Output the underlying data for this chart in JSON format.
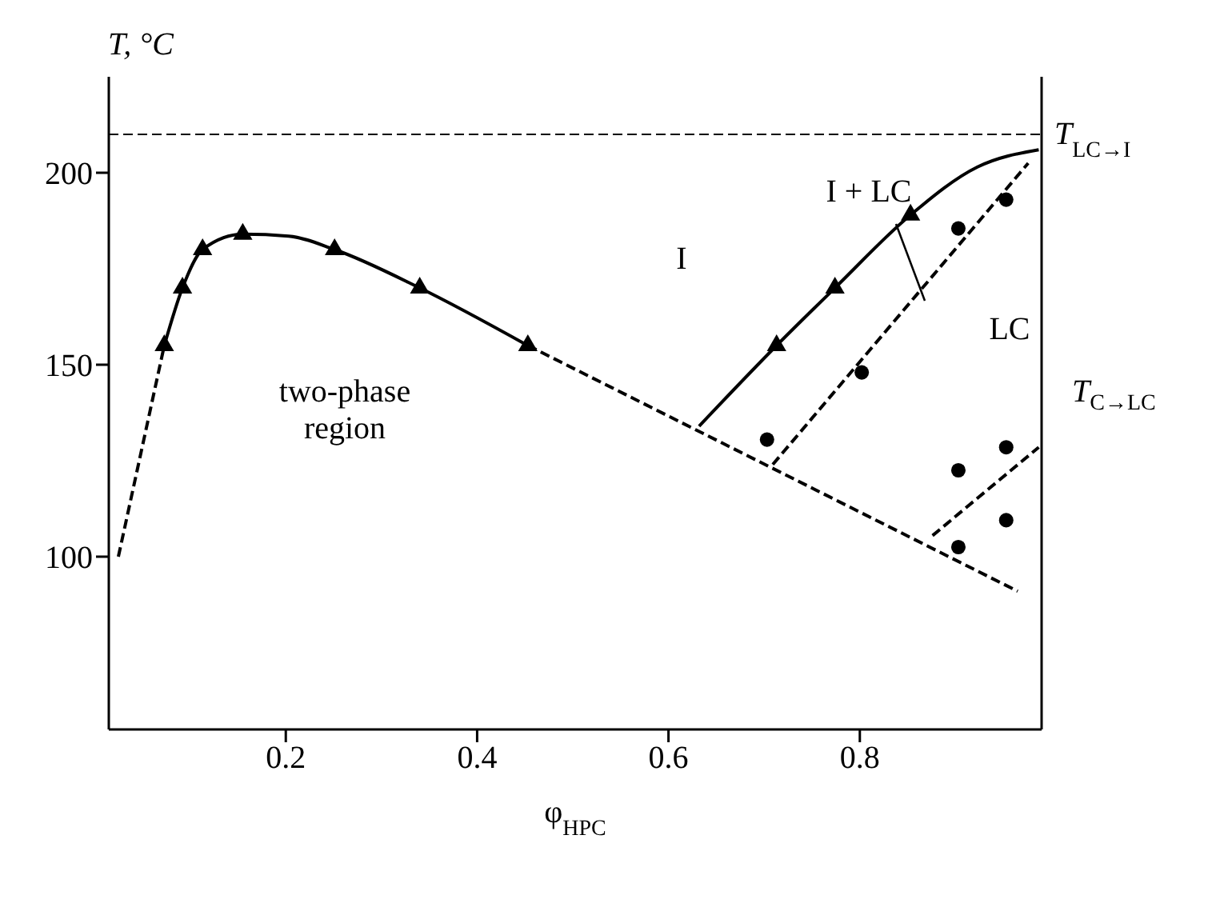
{
  "chart_data": {
    "type": "line",
    "xlabel": "φ$_{HPC}$",
    "ylabel": "T, °C",
    "xlim": [
      0.015,
      0.99
    ],
    "ylim": [
      55,
      225
    ],
    "xticks": [
      0.2,
      0.4,
      0.6,
      0.8
    ],
    "yticks": [
      100,
      150,
      200
    ],
    "grid": false,
    "legend": false,
    "series": [
      {
        "color": "#000000",
        "line_style": "solid",
        "marker": "none",
        "x": [
          0.073,
          0.092,
          0.113,
          0.155,
          0.203,
          0.251,
          0.34,
          0.453
        ],
        "values": [
          155,
          170,
          180,
          184,
          183.5,
          180,
          170,
          155
        ]
      },
      {
        "type": "scatter",
        "color": "#000000",
        "marker": "triangle",
        "x": [
          0.073,
          0.092,
          0.113,
          0.155,
          0.251,
          0.34,
          0.453
        ],
        "values": [
          155,
          170,
          180,
          184,
          180,
          170,
          155
        ]
      },
      {
        "color": "#000000",
        "line_style": "dashed",
        "marker": "none",
        "x": [
          0.025,
          0.073
        ],
        "values": [
          100,
          155
        ]
      },
      {
        "color": "#000000",
        "line_style": "dashed",
        "marker": "none",
        "x": [
          0.453,
          0.965
        ],
        "values": [
          155,
          91
        ]
      },
      {
        "color": "#000000",
        "line_style": "solid",
        "marker": "none",
        "x": [
          0.632,
          0.713,
          0.774,
          0.853,
          0.923,
          0.987
        ],
        "values": [
          134,
          155,
          170,
          189,
          201.5,
          206
        ]
      },
      {
        "type": "scatter",
        "color": "#000000",
        "marker": "triangle",
        "x": [
          0.713,
          0.774,
          0.853
        ],
        "values": [
          155,
          170,
          189
        ]
      },
      {
        "color": "#000000",
        "line_style": "dashed",
        "marker": "none",
        "x": [
          0.709,
          0.976
        ],
        "values": [
          124,
          202.5
        ]
      },
      {
        "color": "#000000",
        "line_style": "dashed",
        "marker": "none",
        "x": [
          0.876,
          0.987
        ],
        "values": [
          105.5,
          128.5
        ]
      },
      {
        "type": "scatter",
        "color": "#000000",
        "marker": "circle",
        "x": [
          0.703,
          0.802,
          0.903,
          0.953,
          0.903,
          0.953,
          0.953,
          0.903
        ],
        "values": [
          130.5,
          148,
          185.5,
          193,
          122.5,
          128.5,
          109.5,
          102.5
        ]
      }
    ],
    "ref_lines": [
      {
        "axis": "y",
        "value": 210,
        "label": "T$_{LC→I}$",
        "line_style": "dashed",
        "color": "#000000"
      }
    ],
    "annotations": [
      "two-phase region",
      "I",
      "I + LC",
      "LC",
      "T$_{C→LC}$"
    ]
  }
}
